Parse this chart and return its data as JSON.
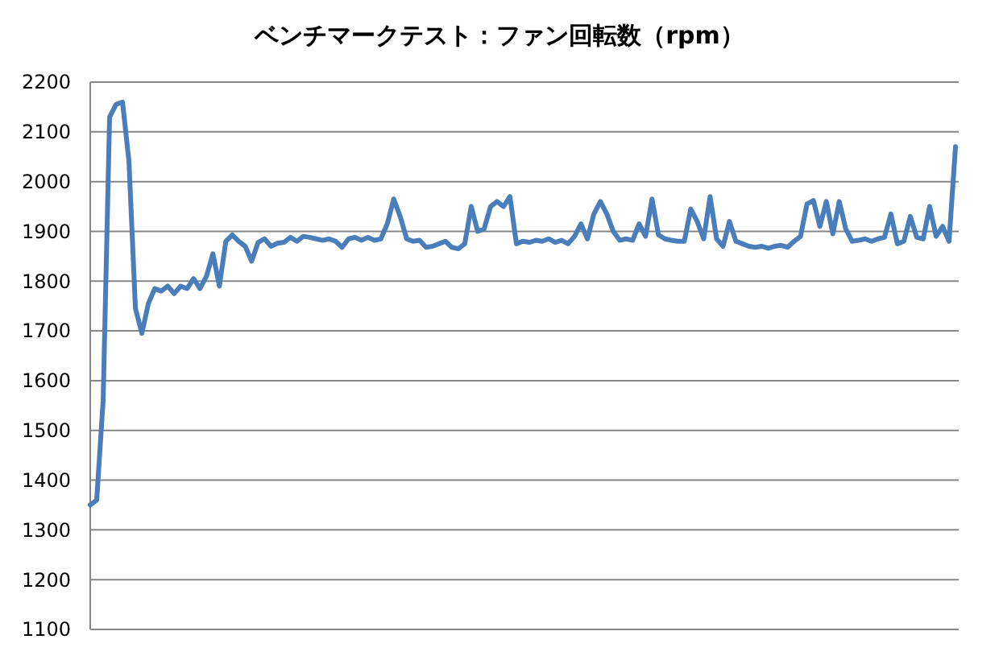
{
  "chart_data": {
    "type": "line",
    "title": "ベンチマークテスト：ファン回転数（rpm）",
    "categories": [
      null,
      null,
      null,
      null,
      null,
      null,
      null,
      null,
      null,
      null,
      null,
      null,
      null,
      null,
      null,
      null,
      null,
      null,
      null,
      null,
      null,
      null,
      null,
      null,
      null,
      null,
      null,
      null,
      null,
      null,
      null,
      null,
      null,
      null,
      null,
      null,
      null,
      null,
      null,
      null,
      null,
      null,
      null,
      null,
      null,
      null,
      null,
      null,
      null,
      null,
      null,
      null,
      null,
      null,
      null,
      null,
      null,
      null,
      null,
      null,
      null,
      null,
      null,
      null,
      null,
      null,
      null,
      null,
      null,
      null,
      null,
      null,
      null,
      null,
      null,
      null,
      null,
      null,
      null,
      null,
      null,
      null,
      null,
      null,
      null,
      null,
      null,
      null,
      null,
      null,
      null,
      null,
      null,
      null,
      null,
      null,
      null,
      null,
      null,
      null,
      null,
      null,
      null,
      null,
      null,
      null,
      null,
      null,
      null,
      null,
      null,
      null,
      null,
      null,
      null,
      null,
      null,
      null,
      null,
      null,
      null,
      null,
      null,
      null,
      null,
      null,
      null,
      null,
      null,
      null,
      null,
      null,
      null,
      null,
      null
    ],
    "values": [
      1350,
      1360,
      1560,
      2130,
      2155,
      2160,
      2040,
      1745,
      1695,
      1755,
      1785,
      1780,
      1790,
      1775,
      1790,
      1785,
      1805,
      1785,
      1810,
      1855,
      1790,
      1880,
      1893,
      1880,
      1870,
      1840,
      1878,
      1885,
      1870,
      1876,
      1878,
      1888,
      1880,
      1890,
      1888,
      1885,
      1882,
      1885,
      1880,
      1868,
      1885,
      1888,
      1882,
      1888,
      1882,
      1885,
      1915,
      1965,
      1930,
      1885,
      1880,
      1882,
      1868,
      1870,
      1875,
      1880,
      1868,
      1865,
      1875,
      1950,
      1900,
      1905,
      1950,
      1960,
      1950,
      1970,
      1875,
      1880,
      1878,
      1882,
      1880,
      1885,
      1878,
      1882,
      1875,
      1890,
      1915,
      1885,
      1935,
      1960,
      1935,
      1900,
      1882,
      1885,
      1882,
      1915,
      1890,
      1965,
      1893,
      1885,
      1882,
      1880,
      1880,
      1945,
      1920,
      1885,
      1970,
      1885,
      1870,
      1920,
      1880,
      1875,
      1870,
      1868,
      1870,
      1866,
      1870,
      1872,
      1868,
      1880,
      1890,
      1955,
      1962,
      1910,
      1960,
      1895,
      1960,
      1905,
      1880,
      1882,
      1885,
      1880,
      1885,
      1888,
      1935,
      1875,
      1880,
      1930,
      1888,
      1885,
      1950,
      1890,
      1910,
      1880,
      2070
    ],
    "color": "#4a7ebb",
    "ylim": [
      1100,
      2200
    ],
    "yticks": [
      1100,
      1200,
      1300,
      1400,
      1500,
      1600,
      1700,
      1800,
      1900,
      2000,
      2100,
      2200
    ],
    "grid": "y"
  }
}
